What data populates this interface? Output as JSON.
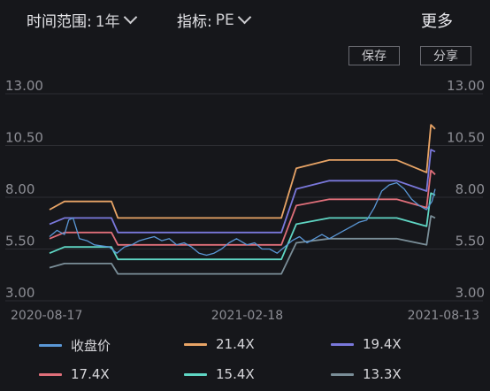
{
  "header": {
    "time_range_label": "时间范围:",
    "time_range_value": "1年",
    "indicator_label": "指标:",
    "indicator_value": "PE",
    "more_label": "更多"
  },
  "buttons": {
    "save": "保存",
    "share": "分享"
  },
  "colors": {
    "price": "#5a97d6",
    "b214": "#e8a466",
    "b194": "#7a78dc",
    "b174": "#e06f7a",
    "b154": "#5fd6c4",
    "b133": "#7a8e98"
  },
  "chart_data": {
    "type": "line",
    "title": "",
    "xlabel": "",
    "ylabel": "",
    "ylim": [
      3.0,
      13.0
    ],
    "y_ticks": [
      "13.00",
      "10.50",
      "8.00",
      "5.50",
      "3.00"
    ],
    "x_ticks": [
      "2020-08-17",
      "2021-02-18",
      "2021-08-13"
    ],
    "x_range": [
      "2020-08-17",
      "2021-08-13"
    ],
    "grid": true,
    "legend_position": "bottom",
    "series": [
      {
        "name": "收盘价",
        "key": "price",
        "points": [
          [
            "2020-08-17",
            6.1
          ],
          [
            "2020-08-24",
            6.4
          ],
          [
            "2020-08-31",
            6.2
          ],
          [
            "2020-09-04",
            6.9
          ],
          [
            "2020-09-08",
            7.0
          ],
          [
            "2020-09-14",
            6.0
          ],
          [
            "2020-09-21",
            5.9
          ],
          [
            "2020-09-28",
            5.7
          ],
          [
            "2020-10-12",
            5.6
          ],
          [
            "2020-10-19",
            5.3
          ],
          [
            "2020-10-26",
            5.6
          ],
          [
            "2020-11-02",
            5.7
          ],
          [
            "2020-11-09",
            5.9
          ],
          [
            "2020-11-16",
            6.0
          ],
          [
            "2020-11-23",
            6.1
          ],
          [
            "2020-11-30",
            5.9
          ],
          [
            "2020-12-07",
            6.0
          ],
          [
            "2020-12-14",
            5.7
          ],
          [
            "2020-12-21",
            5.8
          ],
          [
            "2020-12-28",
            5.6
          ],
          [
            "2021-01-04",
            5.3
          ],
          [
            "2021-01-11",
            5.2
          ],
          [
            "2021-01-18",
            5.3
          ],
          [
            "2021-01-25",
            5.5
          ],
          [
            "2021-02-01",
            5.8
          ],
          [
            "2021-02-08",
            6.0
          ],
          [
            "2021-02-18",
            5.7
          ],
          [
            "2021-02-25",
            5.8
          ],
          [
            "2021-03-04",
            5.5
          ],
          [
            "2021-03-11",
            5.5
          ],
          [
            "2021-03-18",
            5.3
          ],
          [
            "2021-03-25",
            5.6
          ],
          [
            "2021-04-01",
            5.9
          ],
          [
            "2021-04-08",
            6.1
          ],
          [
            "2021-04-15",
            5.8
          ],
          [
            "2021-04-22",
            6.0
          ],
          [
            "2021-04-29",
            6.2
          ],
          [
            "2021-05-06",
            6.0
          ],
          [
            "2021-05-13",
            6.2
          ],
          [
            "2021-05-20",
            6.4
          ],
          [
            "2021-05-27",
            6.6
          ],
          [
            "2021-06-03",
            6.8
          ],
          [
            "2021-06-10",
            6.9
          ],
          [
            "2021-06-17",
            7.5
          ],
          [
            "2021-06-24",
            8.3
          ],
          [
            "2021-07-01",
            8.6
          ],
          [
            "2021-07-08",
            8.7
          ],
          [
            "2021-07-15",
            8.4
          ],
          [
            "2021-07-22",
            7.9
          ],
          [
            "2021-07-29",
            7.6
          ],
          [
            "2021-08-05",
            7.4
          ],
          [
            "2021-08-10",
            7.8
          ],
          [
            "2021-08-13",
            8.4
          ]
        ]
      },
      {
        "name": "21.4X",
        "key": "b214",
        "points": [
          [
            "2020-08-17",
            7.4
          ],
          [
            "2020-08-31",
            7.8
          ],
          [
            "2020-10-14",
            7.8
          ],
          [
            "2020-10-20",
            7.0
          ],
          [
            "2021-03-22",
            7.0
          ],
          [
            "2021-04-05",
            9.4
          ],
          [
            "2021-05-06",
            9.8
          ],
          [
            "2021-07-08",
            9.8
          ],
          [
            "2021-08-05",
            9.2
          ],
          [
            "2021-08-09",
            11.5
          ],
          [
            "2021-08-13",
            11.3
          ]
        ]
      },
      {
        "name": "19.4X",
        "key": "b194",
        "points": [
          [
            "2020-08-17",
            6.7
          ],
          [
            "2020-08-31",
            7.0
          ],
          [
            "2020-10-14",
            7.0
          ],
          [
            "2020-10-20",
            6.3
          ],
          [
            "2021-03-22",
            6.3
          ],
          [
            "2021-04-05",
            8.4
          ],
          [
            "2021-05-06",
            8.8
          ],
          [
            "2021-07-08",
            8.8
          ],
          [
            "2021-08-05",
            8.3
          ],
          [
            "2021-08-09",
            10.3
          ],
          [
            "2021-08-13",
            10.2
          ]
        ]
      },
      {
        "name": "17.4X",
        "key": "b174",
        "points": [
          [
            "2020-08-17",
            6.0
          ],
          [
            "2020-08-31",
            6.3
          ],
          [
            "2020-10-14",
            6.3
          ],
          [
            "2020-10-20",
            5.7
          ],
          [
            "2021-03-22",
            5.7
          ],
          [
            "2021-04-05",
            7.6
          ],
          [
            "2021-05-06",
            7.9
          ],
          [
            "2021-07-08",
            7.9
          ],
          [
            "2021-08-05",
            7.5
          ],
          [
            "2021-08-09",
            9.3
          ],
          [
            "2021-08-13",
            9.1
          ]
        ]
      },
      {
        "name": "15.4X",
        "key": "b154",
        "points": [
          [
            "2020-08-17",
            5.3
          ],
          [
            "2020-08-31",
            5.6
          ],
          [
            "2020-10-14",
            5.6
          ],
          [
            "2020-10-20",
            5.0
          ],
          [
            "2021-03-22",
            5.0
          ],
          [
            "2021-04-05",
            6.7
          ],
          [
            "2021-05-06",
            7.0
          ],
          [
            "2021-07-08",
            7.0
          ],
          [
            "2021-08-05",
            6.6
          ],
          [
            "2021-08-09",
            8.2
          ],
          [
            "2021-08-13",
            8.1
          ]
        ]
      },
      {
        "name": "13.3X",
        "key": "b133",
        "points": [
          [
            "2020-08-17",
            4.6
          ],
          [
            "2020-08-31",
            4.8
          ],
          [
            "2020-10-14",
            4.8
          ],
          [
            "2020-10-20",
            4.3
          ],
          [
            "2021-03-22",
            4.3
          ],
          [
            "2021-04-05",
            5.8
          ],
          [
            "2021-05-06",
            6.0
          ],
          [
            "2021-07-08",
            6.0
          ],
          [
            "2021-08-05",
            5.7
          ],
          [
            "2021-08-09",
            7.1
          ],
          [
            "2021-08-13",
            7.0
          ]
        ]
      }
    ]
  }
}
